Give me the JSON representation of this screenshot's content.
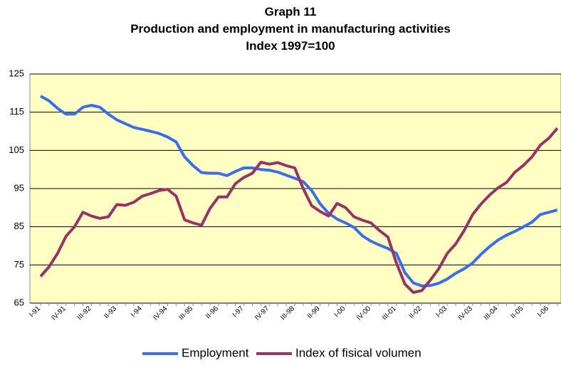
{
  "chart_data": {
    "type": "line",
    "title": "Graph 11",
    "subtitle": "Production and employment in manufacturing activities",
    "subtitle2": "Index 1997=100",
    "categories": [
      "I-91",
      null,
      null,
      "IV-91",
      null,
      null,
      "III-92",
      null,
      null,
      "II-93",
      null,
      null,
      "I-94",
      null,
      null,
      "IV-94",
      null,
      null,
      "III-95",
      null,
      null,
      "II-96",
      null,
      null,
      "I-97",
      null,
      null,
      "IV-97",
      null,
      null,
      "III-98",
      null,
      null,
      "II-99",
      null,
      null,
      "I-00",
      null,
      null,
      "IV-00",
      null,
      null,
      "III-01",
      null,
      null,
      "II-02",
      null,
      null,
      "I-03",
      null,
      null,
      "IV-03",
      null,
      null,
      "III-04",
      null,
      null,
      "II-05",
      null,
      null,
      "I-06",
      null
    ],
    "series": [
      {
        "name": "Employment",
        "color": "#3b6cf0",
        "values": [
          119.2,
          118,
          116,
          114.5,
          114.5,
          116.3,
          116.8,
          116.3,
          114.5,
          113,
          112,
          111,
          110.5,
          110,
          109.4,
          108.5,
          107.2,
          103.3,
          101,
          99.2,
          99,
          99,
          98.4,
          99.5,
          100.4,
          100.4,
          100,
          99.8,
          99.3,
          98.5,
          97.7,
          96.8,
          94.5,
          91,
          88.5,
          87,
          86,
          84.8,
          82.6,
          81.2,
          80.2,
          79.3,
          78,
          73,
          70.3,
          69.5,
          69.6,
          70.2,
          71.3,
          72.8,
          74,
          75.5,
          77.8,
          79.8,
          81.5,
          82.8,
          83.8,
          85,
          86.2,
          88.2,
          88.8,
          89.4
        ]
      },
      {
        "name": "Index of fisical volumen",
        "color": "#993366",
        "values": [
          72,
          74.5,
          78,
          82.5,
          85,
          88.8,
          87.8,
          87.2,
          87.6,
          90.8,
          90.6,
          91.4,
          93,
          93.7,
          94.5,
          94.8,
          93,
          86.8,
          86,
          85.4,
          89.8,
          92.8,
          92.8,
          96.3,
          97.9,
          99,
          101.9,
          101.4,
          101.8,
          101,
          100.4,
          95,
          90.5,
          89,
          87.8,
          91.1,
          90,
          87.6,
          86.7,
          86,
          84,
          82.3,
          75.5,
          70,
          67.8,
          68.3,
          71,
          74,
          78,
          80.5,
          84,
          88.2,
          91,
          93.3,
          95.2,
          96.6,
          99.3,
          101.1,
          103.3,
          106.4,
          108.2,
          110.8
        ]
      }
    ],
    "ylim": [
      65,
      125
    ],
    "yticks": [
      65,
      75,
      85,
      95,
      105,
      115,
      125
    ],
    "grid": true,
    "plot_background": "#ffffc4",
    "legend": "bottom"
  }
}
